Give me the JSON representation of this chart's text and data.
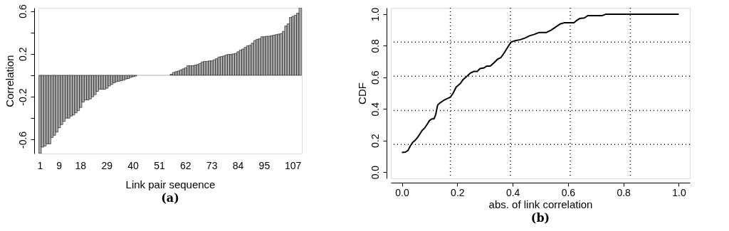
{
  "chart_data": [
    {
      "type": "bar",
      "title": "(a)",
      "xlabel": "Link pair sequence",
      "ylabel": "Correlation",
      "color": "#b0b0b0",
      "categories": [
        "1",
        null,
        null,
        null,
        null,
        null,
        null,
        null,
        "9",
        null,
        null,
        null,
        null,
        null,
        null,
        null,
        null,
        "18",
        null,
        null,
        null,
        null,
        null,
        null,
        null,
        null,
        null,
        null,
        "29",
        null,
        null,
        null,
        null,
        null,
        null,
        null,
        null,
        null,
        null,
        "40",
        null,
        null,
        null,
        null,
        null,
        null,
        null,
        null,
        null,
        null,
        "51",
        null,
        null,
        null,
        null,
        null,
        null,
        null,
        null,
        null,
        null,
        "62",
        null,
        null,
        null,
        null,
        null,
        null,
        null,
        null,
        null,
        null,
        "73",
        null,
        null,
        null,
        null,
        null,
        null,
        null,
        null,
        null,
        null,
        "84",
        null,
        null,
        null,
        null,
        null,
        null,
        null,
        null,
        null,
        null,
        "95",
        null,
        null,
        null,
        null,
        null,
        null,
        null,
        null,
        null,
        null,
        null,
        "107",
        null,
        null,
        null
      ],
      "values": [
        -0.73,
        -0.67,
        -0.66,
        -0.64,
        -0.64,
        -0.58,
        -0.56,
        -0.53,
        -0.49,
        -0.46,
        -0.43,
        -0.4,
        -0.4,
        -0.38,
        -0.37,
        -0.35,
        -0.33,
        -0.3,
        -0.25,
        -0.23,
        -0.23,
        -0.22,
        -0.2,
        -0.18,
        -0.15,
        -0.13,
        -0.13,
        -0.13,
        -0.12,
        -0.1,
        -0.085,
        -0.07,
        -0.06,
        -0.055,
        -0.05,
        -0.045,
        -0.035,
        -0.03,
        -0.02,
        -0.013,
        -0.007,
        0,
        0,
        0,
        0,
        0,
        0,
        0,
        0,
        0,
        0,
        0,
        0,
        0,
        0,
        0.01,
        0.027,
        0.034,
        0.04,
        0.05,
        0.06,
        0.07,
        0.09,
        0.09,
        0.09,
        0.095,
        0.1,
        0.11,
        0.125,
        0.13,
        0.13,
        0.135,
        0.135,
        0.145,
        0.155,
        0.17,
        0.175,
        0.18,
        0.19,
        0.195,
        0.195,
        0.2,
        0.205,
        0.22,
        0.235,
        0.245,
        0.26,
        0.275,
        0.28,
        0.3,
        0.325,
        0.335,
        0.34,
        0.36,
        0.36,
        0.365,
        0.365,
        0.37,
        0.375,
        0.38,
        0.385,
        0.39,
        0.41,
        0.46,
        0.48,
        0.54,
        0.55,
        0.56,
        0.58,
        0.63
      ],
      "ylim": [
        -0.73,
        0.63
      ],
      "yticks": [
        -0.6,
        {
          "value": -0.4,
          "label": null
        },
        -0.2,
        {
          "value": 0,
          "label": null
        },
        0.2,
        {
          "value": 0.4,
          "label": null
        },
        0.6
      ]
    },
    {
      "type": "line",
      "title": "(b)",
      "xlabel": "abs. of link correlation",
      "ylabel": "CDF",
      "color": "#000000",
      "x": [
        0.0,
        0.013,
        0.022,
        0.03,
        0.039,
        0.047,
        0.056,
        0.065,
        0.073,
        0.082,
        0.091,
        0.099,
        0.108,
        0.116,
        0.122,
        0.129,
        0.138,
        0.151,
        0.164,
        0.175,
        0.185,
        0.196,
        0.211,
        0.22,
        0.233,
        0.246,
        0.259,
        0.272,
        0.282,
        0.297,
        0.306,
        0.319,
        0.332,
        0.345,
        0.358,
        0.371,
        0.382,
        0.394,
        0.409,
        0.427,
        0.444,
        0.461,
        0.478,
        0.496,
        0.522,
        0.539,
        0.556,
        0.573,
        0.586,
        0.621,
        0.629,
        0.642,
        0.659,
        0.672,
        0.724,
        0.737,
        1.0
      ],
      "values": [
        0.124,
        0.127,
        0.137,
        0.165,
        0.188,
        0.2,
        0.218,
        0.241,
        0.264,
        0.279,
        0.302,
        0.325,
        0.337,
        0.337,
        0.363,
        0.424,
        0.439,
        0.454,
        0.466,
        0.474,
        0.5,
        0.538,
        0.561,
        0.584,
        0.604,
        0.625,
        0.637,
        0.637,
        0.655,
        0.66,
        0.671,
        0.671,
        0.691,
        0.714,
        0.726,
        0.759,
        0.79,
        0.823,
        0.832,
        0.838,
        0.848,
        0.863,
        0.872,
        0.884,
        0.884,
        0.899,
        0.919,
        0.939,
        0.945,
        0.945,
        0.957,
        0.972,
        0.976,
        0.991,
        0.991,
        1.0,
        1.0
      ],
      "xlim": [
        -0.04,
        1.04
      ],
      "ylim": [
        -0.04,
        1.04
      ],
      "xticks": [
        {
          "value": 0,
          "label": "0.0"
        },
        {
          "value": 0.2,
          "label": "0.2"
        },
        {
          "value": 0.4,
          "label": "0.4"
        },
        {
          "value": 0.6,
          "label": "0.6"
        },
        {
          "value": 0.8,
          "label": "0.8"
        },
        {
          "value": 1,
          "label": "1.0"
        }
      ],
      "yticks": [
        {
          "value": 0,
          "label": "0.0"
        },
        {
          "value": 0.2,
          "label": "0.2"
        },
        {
          "value": 0.4,
          "label": "0.4"
        },
        {
          "value": 0.6,
          "label": "0.6"
        },
        {
          "value": 0.8,
          "label": "0.8"
        },
        {
          "value": 1,
          "label": "1.0"
        }
      ],
      "ref_lines": [
        {
          "axis": "x",
          "value": 0.175,
          "line_style": "dotted"
        },
        {
          "axis": "x",
          "value": 0.392,
          "line_style": "dotted"
        },
        {
          "axis": "x",
          "value": 0.608,
          "line_style": "dotted"
        },
        {
          "axis": "x",
          "value": 0.825,
          "line_style": "dotted"
        },
        {
          "axis": "y",
          "value": 0.175,
          "line_style": "dotted"
        },
        {
          "axis": "y",
          "value": 0.39,
          "line_style": "dotted"
        },
        {
          "axis": "y",
          "value": 0.607,
          "line_style": "dotted"
        },
        {
          "axis": "y",
          "value": 0.823,
          "line_style": "dotted"
        }
      ]
    }
  ]
}
